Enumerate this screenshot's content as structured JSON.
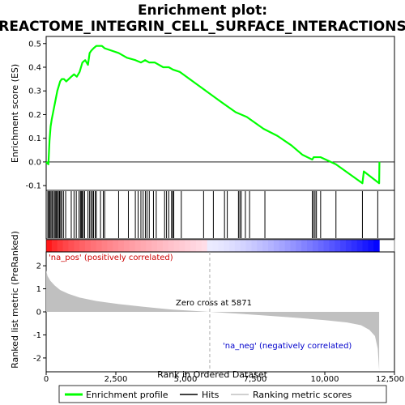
{
  "chart_data": {
    "type": "line",
    "title_line1": "Enrichment plot:",
    "title_line2": "REACTOME_INTEGRIN_CELL_SURFACE_INTERACTIONS",
    "xlabel": "Rank in Ordered Dataset",
    "ylabel_top": "Enrichment score (ES)",
    "ylabel_bottom": "Ranked list metric (PreRanked)",
    "x_ticks": [
      "0",
      "2,500",
      "5,000",
      "7,500",
      "10,000",
      "12,500"
    ],
    "x_tick_values": [
      0,
      2500,
      5000,
      7500,
      10000,
      12500
    ],
    "es_y_ticks": [
      "-0.1",
      "0.0",
      "0.1",
      "0.2",
      "0.3",
      "0.4",
      "0.5"
    ],
    "es_y_tick_values": [
      -0.1,
      0.0,
      0.1,
      0.2,
      0.3,
      0.4,
      0.5
    ],
    "metric_y_ticks": [
      "-2",
      "-1",
      "0",
      "1",
      "2"
    ],
    "metric_y_tick_values": [
      -2,
      -1,
      0,
      1,
      2
    ],
    "xlim": [
      0,
      12500
    ],
    "es_ylim": [
      -0.12,
      0.53
    ],
    "metric_ylim": [
      -2.6,
      2.6
    ],
    "n_genes": 11950,
    "zero_cross": 5871,
    "annotations": {
      "pos_label": "'na_pos' (positively correlated)",
      "neg_label": "'na_neg' (negatively correlated)",
      "zero_cross_label": "Zero cross at 5871"
    },
    "colors": {
      "es_line": "#00ff00",
      "hits": "#000000",
      "pos_text": "#cc0000",
      "neg_text": "#0000cc",
      "metric_fill": "#c0c0c0",
      "bar_red": "#ff0000",
      "bar_blue": "#0000ff"
    },
    "es_curve": {
      "x": [
        0,
        80,
        120,
        160,
        200,
        250,
        300,
        350,
        400,
        450,
        500,
        560,
        640,
        720,
        900,
        1000,
        1100,
        1200,
        1250,
        1300,
        1400,
        1500,
        1560,
        1620,
        1700,
        1800,
        1900,
        2000,
        2100,
        2600,
        2900,
        3200,
        3400,
        3550,
        3700,
        3900,
        4200,
        4400,
        4550,
        4800,
        5500,
        6200,
        6800,
        7200,
        7800,
        8300,
        8800,
        9200,
        9550,
        9600,
        9700,
        9850,
        10400,
        11350,
        11400,
        11950,
        11960
      ],
      "y": [
        0.0,
        -0.01,
        0.09,
        0.15,
        0.18,
        0.21,
        0.24,
        0.27,
        0.3,
        0.32,
        0.34,
        0.35,
        0.35,
        0.34,
        0.36,
        0.37,
        0.36,
        0.38,
        0.4,
        0.42,
        0.43,
        0.41,
        0.46,
        0.47,
        0.48,
        0.49,
        0.49,
        0.49,
        0.48,
        0.46,
        0.44,
        0.43,
        0.42,
        0.43,
        0.42,
        0.42,
        0.4,
        0.4,
        0.39,
        0.38,
        0.32,
        0.26,
        0.21,
        0.19,
        0.14,
        0.11,
        0.07,
        0.03,
        0.01,
        0.02,
        0.02,
        0.02,
        -0.01,
        -0.09,
        -0.04,
        -0.09,
        0.0
      ]
    },
    "hits": [
      60,
      90,
      130,
      170,
      210,
      250,
      300,
      340,
      370,
      400,
      440,
      480,
      520,
      560,
      620,
      700,
      900,
      1000,
      1080,
      1180,
      1230,
      1260,
      1290,
      1330,
      1380,
      1500,
      1560,
      1610,
      1660,
      1700,
      1760,
      1800,
      1950,
      2050,
      2100,
      2600,
      2950,
      3200,
      3300,
      3400,
      3480,
      3560,
      3620,
      3700,
      3850,
      3950,
      4250,
      4320,
      4400,
      4500,
      4540,
      4580,
      4850,
      5650,
      6000,
      6400,
      6500,
      6900,
      6950,
      7000,
      7150,
      7300,
      7850,
      9550,
      9600,
      9650,
      9700,
      9850,
      10400,
      11350,
      11900
    ],
    "metric_curve": {
      "x": [
        0,
        50,
        150,
        300,
        500,
        800,
        1200,
        1800,
        2600,
        3500,
        4500,
        5871,
        7000,
        8000,
        9000,
        10000,
        10800,
        11300,
        11600,
        11800,
        11900,
        11950
      ],
      "y": [
        1.8,
        1.55,
        1.35,
        1.15,
        0.95,
        0.78,
        0.62,
        0.47,
        0.34,
        0.22,
        0.1,
        0.0,
        -0.09,
        -0.17,
        -0.26,
        -0.36,
        -0.46,
        -0.58,
        -0.78,
        -1.05,
        -1.6,
        -2.55
      ]
    },
    "legend": {
      "enrichment_profile": "Enrichment profile",
      "hits": "Hits",
      "ranking_metric_scores": "Ranking metric scores"
    }
  }
}
